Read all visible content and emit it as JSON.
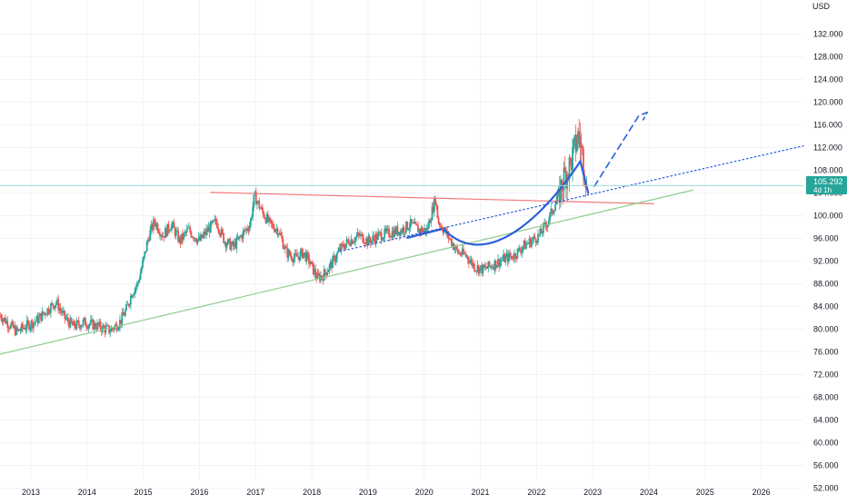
{
  "chart_data": {
    "type": "candlestick",
    "currency": "USD",
    "y_range": [
      50,
      138
    ],
    "x_range": [
      2012.45,
      2026.75
    ],
    "x_ticks": [
      {
        "label": "2013",
        "value": 2013
      },
      {
        "label": "2014",
        "value": 2014
      },
      {
        "label": "2015",
        "value": 2015
      },
      {
        "label": "2016",
        "value": 2016
      },
      {
        "label": "2017",
        "value": 2017
      },
      {
        "label": "2018",
        "value": 2018
      },
      {
        "label": "2019",
        "value": 2019
      },
      {
        "label": "2020",
        "value": 2020
      },
      {
        "label": "2021",
        "value": 2021
      },
      {
        "label": "2022",
        "value": 2022
      },
      {
        "label": "2023",
        "value": 2023
      },
      {
        "label": "2024",
        "value": 2024
      },
      {
        "label": "2025",
        "value": 2025
      },
      {
        "label": "2026",
        "value": 2026
      }
    ],
    "y_ticks": [
      {
        "label": "132.000",
        "value": 132
      },
      {
        "label": "128.000",
        "value": 128
      },
      {
        "label": "124.000",
        "value": 124
      },
      {
        "label": "120.000",
        "value": 120
      },
      {
        "label": "116.000",
        "value": 116
      },
      {
        "label": "112.000",
        "value": 112
      },
      {
        "label": "108.000",
        "value": 108
      },
      {
        "label": "104.000",
        "value": 104
      },
      {
        "label": "100.000",
        "value": 100
      },
      {
        "label": "96.000",
        "value": 96
      },
      {
        "label": "92.000",
        "value": 92
      },
      {
        "label": "88.000",
        "value": 88
      },
      {
        "label": "84.000",
        "value": 84
      },
      {
        "label": "80.000",
        "value": 80
      },
      {
        "label": "76.000",
        "value": 76
      },
      {
        "label": "72.000",
        "value": 72
      },
      {
        "label": "68.000",
        "value": 68
      },
      {
        "label": "64.000",
        "value": 64
      },
      {
        "label": "60.000",
        "value": 60
      },
      {
        "label": "56.000",
        "value": 56
      },
      {
        "label": "52.000",
        "value": 52
      }
    ],
    "current_price": {
      "label": "105.292",
      "countdown": "4d 1h",
      "value": 105.292
    },
    "price_path": [
      [
        2012.45,
        82.5
      ],
      [
        2012.6,
        81.0
      ],
      [
        2012.75,
        79.5
      ],
      [
        2012.9,
        80.5
      ],
      [
        2013.1,
        81.5
      ],
      [
        2013.3,
        83.5
      ],
      [
        2013.45,
        84.8
      ],
      [
        2013.6,
        82.0
      ],
      [
        2013.75,
        80.5
      ],
      [
        2013.95,
        81.2
      ],
      [
        2014.2,
        80.5
      ],
      [
        2014.4,
        79.8
      ],
      [
        2014.5,
        80.5
      ],
      [
        2014.6,
        81.5
      ],
      [
        2014.7,
        83.5
      ],
      [
        2014.8,
        86.5
      ],
      [
        2014.9,
        88.0
      ],
      [
        2015.0,
        92.0
      ],
      [
        2015.1,
        96.5
      ],
      [
        2015.2,
        99.0
      ],
      [
        2015.35,
        96.5
      ],
      [
        2015.5,
        98.5
      ],
      [
        2015.65,
        95.5
      ],
      [
        2015.8,
        97.5
      ],
      [
        2016.0,
        95.5
      ],
      [
        2016.15,
        97.5
      ],
      [
        2016.3,
        99.0
      ],
      [
        2016.45,
        95.5
      ],
      [
        2016.6,
        94.5
      ],
      [
        2016.75,
        96.5
      ],
      [
        2016.9,
        98.5
      ],
      [
        2016.98,
        103.5
      ],
      [
        2017.1,
        101.0
      ],
      [
        2017.25,
        98.5
      ],
      [
        2017.4,
        97.5
      ],
      [
        2017.55,
        93.5
      ],
      [
        2017.7,
        92.5
      ],
      [
        2017.85,
        93.5
      ],
      [
        2017.95,
        92.0
      ],
      [
        2018.1,
        89.0
      ],
      [
        2018.2,
        89.5
      ],
      [
        2018.35,
        91.5
      ],
      [
        2018.5,
        94.0
      ],
      [
        2018.65,
        95.5
      ],
      [
        2018.85,
        96.5
      ],
      [
        2019.0,
        95.5
      ],
      [
        2019.2,
        96.5
      ],
      [
        2019.4,
        97.0
      ],
      [
        2019.6,
        97.5
      ],
      [
        2019.75,
        98.5
      ],
      [
        2019.9,
        97.5
      ],
      [
        2020.05,
        97.5
      ],
      [
        2020.2,
        103.0
      ],
      [
        2020.25,
        99.0
      ],
      [
        2020.35,
        97.5
      ],
      [
        2020.45,
        96.0
      ],
      [
        2020.6,
        93.5
      ],
      [
        2020.75,
        93.0
      ],
      [
        2020.9,
        91.0
      ],
      [
        2021.05,
        90.5
      ],
      [
        2021.25,
        91.5
      ],
      [
        2021.45,
        92.5
      ],
      [
        2021.6,
        93.0
      ],
      [
        2021.75,
        94.5
      ],
      [
        2021.9,
        95.5
      ],
      [
        2022.05,
        96.5
      ],
      [
        2022.2,
        99.0
      ],
      [
        2022.35,
        102.5
      ],
      [
        2022.5,
        107.0
      ],
      [
        2022.6,
        109.0
      ],
      [
        2022.7,
        112.5
      ],
      [
        2022.75,
        114.5
      ],
      [
        2022.8,
        111.5
      ],
      [
        2022.85,
        109.0
      ],
      [
        2022.9,
        105.3
      ]
    ],
    "drawings": [
      {
        "kind": "solid",
        "color": "#f07a7a",
        "points": [
          [
            2016.2,
            104.1
          ],
          [
            2024.08,
            102.1
          ]
        ]
      },
      {
        "kind": "solid",
        "color": "#8fcb8c",
        "points": [
          [
            2012.45,
            75.6
          ],
          [
            2024.78,
            104.5
          ]
        ]
      },
      {
        "kind": "dotted",
        "color": "#2b5fd9",
        "points": [
          [
            2018.5,
            93.7
          ],
          [
            2026.75,
            112.3
          ]
        ]
      },
      {
        "kind": "solid",
        "color": "#2b5fd9",
        "points": [
          [
            2019.7,
            96.1
          ],
          [
            2020.3,
            97.6
          ]
        ]
      },
      {
        "kind": "curve",
        "color": "#2b5fd9",
        "points": [
          [
            2020.35,
            97.6
          ],
          [
            2021.2,
            89.0
          ],
          [
            2022.35,
            103.0
          ],
          [
            2022.78,
            109.6
          ]
        ]
      },
      {
        "kind": "solid",
        "color": "#2b5fd9",
        "points": [
          [
            2022.78,
            109.6
          ],
          [
            2022.92,
            104.0
          ]
        ]
      },
      {
        "kind": "dashed",
        "color": "#2b5fd9",
        "points": [
          [
            2023.03,
            105.2
          ],
          [
            2023.82,
            117.6
          ],
          [
            2023.97,
            118.2
          ],
          [
            2023.9,
            116.9
          ]
        ]
      }
    ],
    "colors": {
      "up": "#26a69a",
      "down": "#ef5350",
      "badge": "#26a69a",
      "price_line": "#9ad9d2",
      "grid": "#f0f3fa"
    }
  }
}
